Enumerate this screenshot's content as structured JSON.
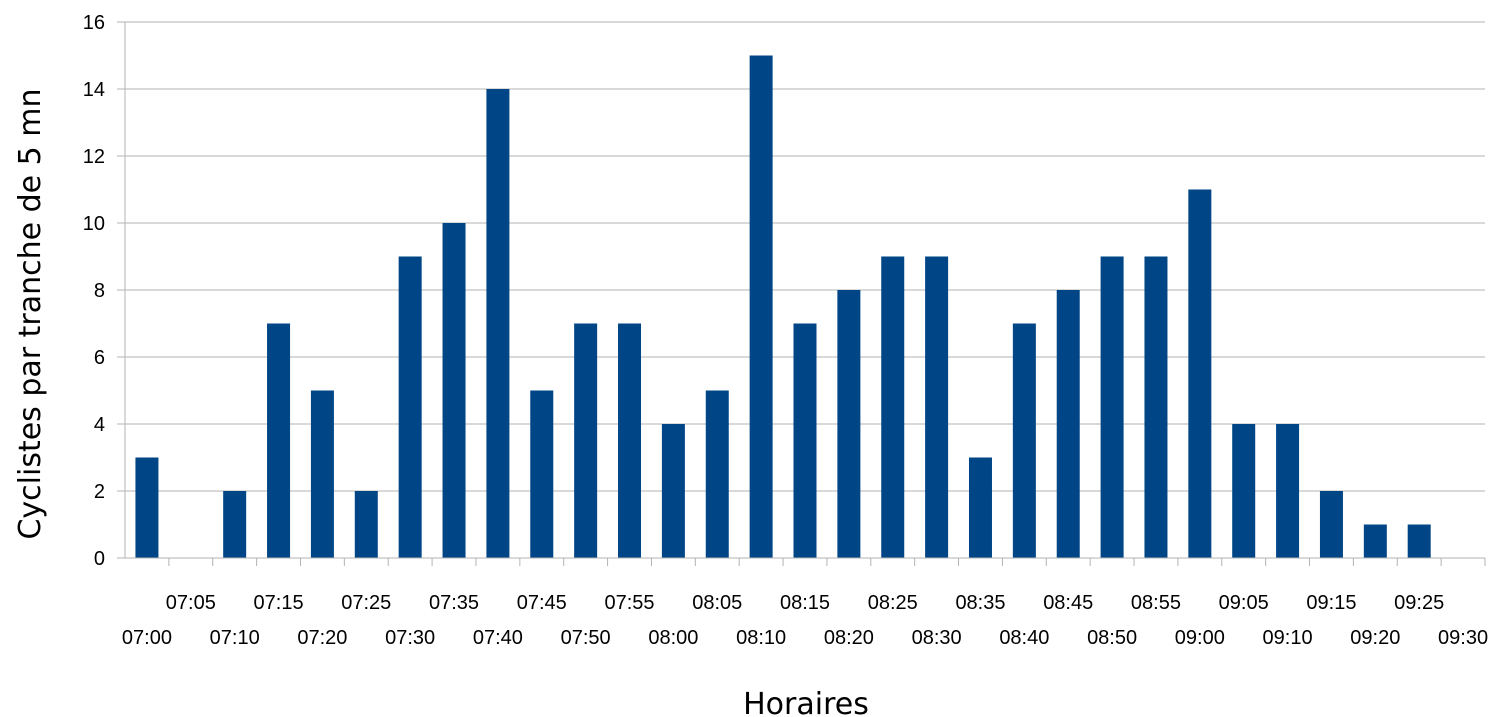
{
  "chart_data": {
    "type": "bar",
    "title": "",
    "xlabel": "Horaires",
    "ylabel": "Cyclistes par tranche de 5 mn",
    "ylim": [
      0,
      16
    ],
    "yticks": [
      0,
      2,
      4,
      6,
      8,
      10,
      12,
      14,
      16
    ],
    "grid": "horizontal",
    "legend": "none",
    "bar_color": "#004586",
    "categories": [
      "07:00",
      "07:05",
      "07:10",
      "07:15",
      "07:20",
      "07:25",
      "07:30",
      "07:35",
      "07:40",
      "07:45",
      "07:50",
      "07:55",
      "08:00",
      "08:05",
      "08:10",
      "08:15",
      "08:20",
      "08:25",
      "08:30",
      "08:35",
      "08:40",
      "08:45",
      "08:50",
      "08:55",
      "09:00",
      "09:05",
      "09:10",
      "09:15",
      "09:20",
      "09:25",
      "09:30"
    ],
    "values": [
      3,
      0,
      2,
      7,
      5,
      2,
      9,
      10,
      14,
      5,
      7,
      7,
      4,
      5,
      15,
      7,
      8,
      9,
      9,
      3,
      7,
      8,
      9,
      9,
      11,
      4,
      4,
      2,
      1,
      1,
      0
    ]
  }
}
